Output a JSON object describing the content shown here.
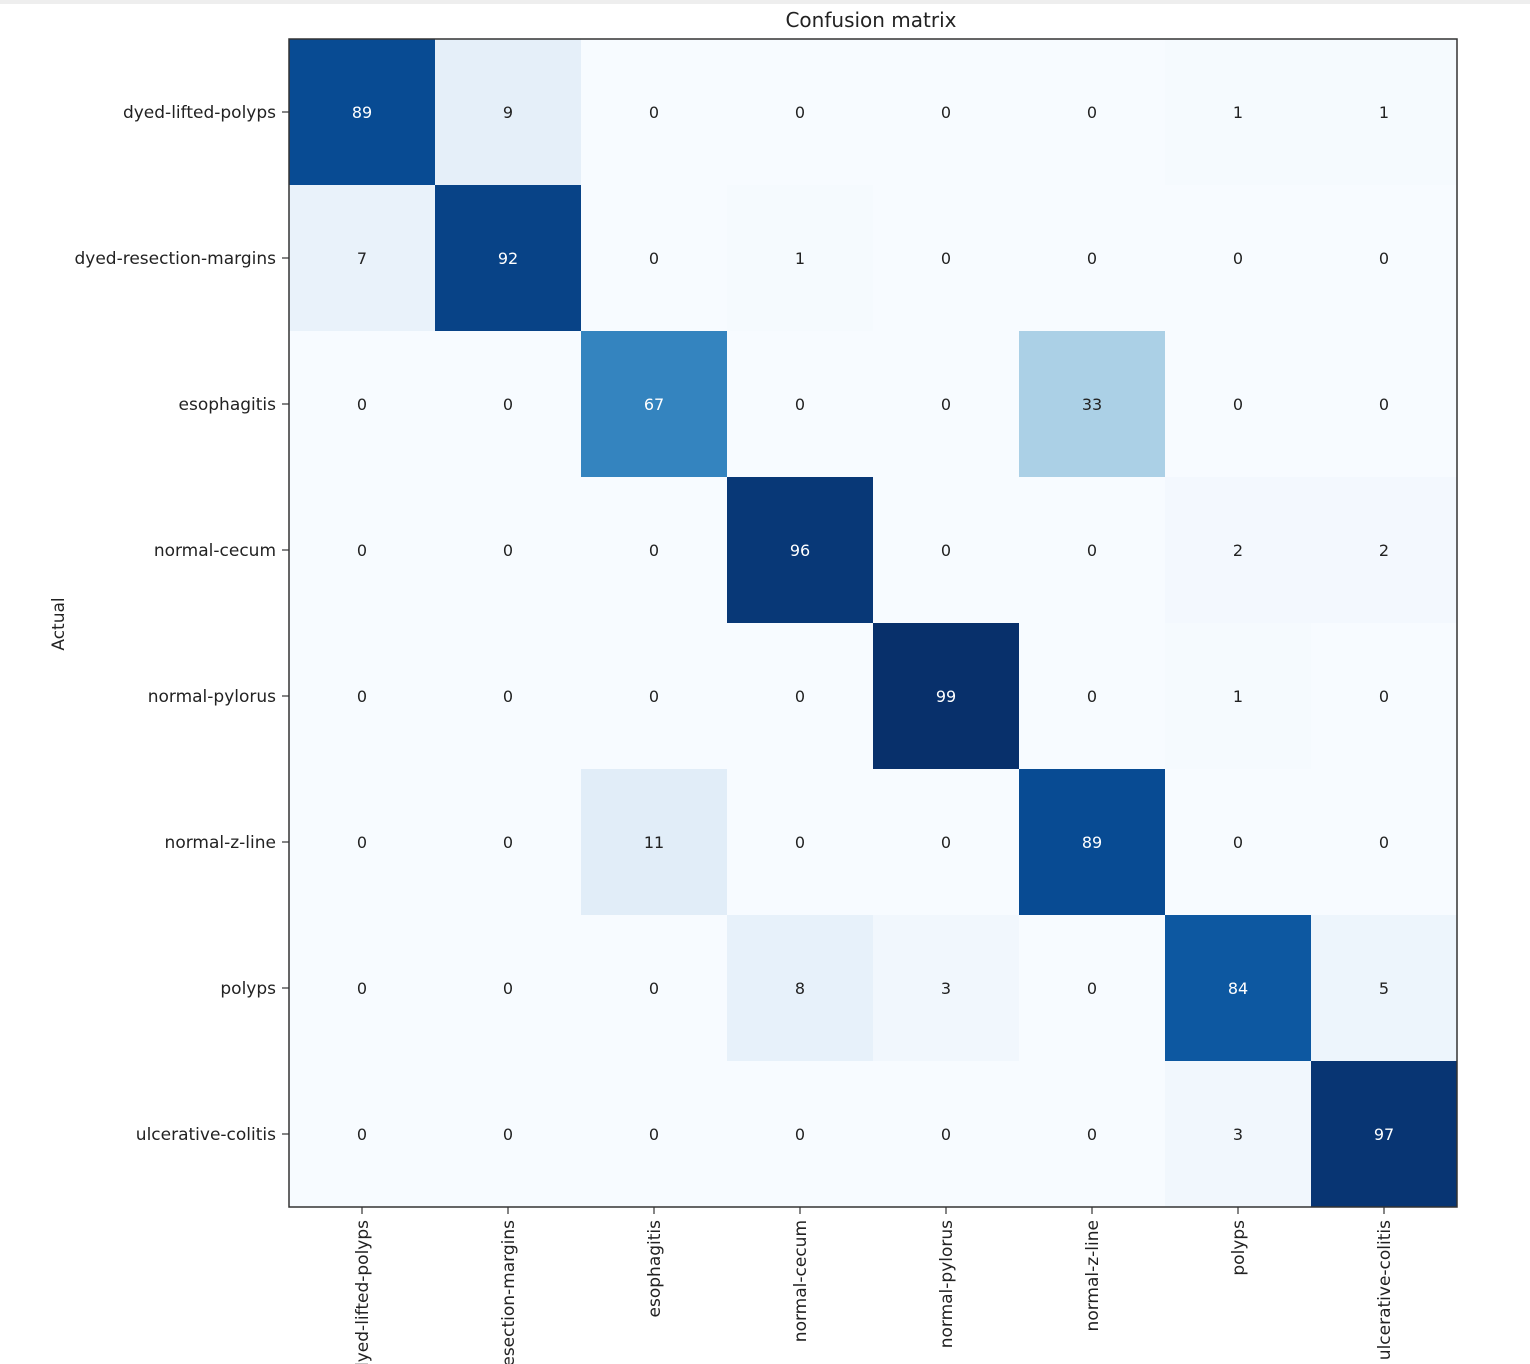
{
  "chart_data": {
    "type": "heatmap",
    "title": "Confusion matrix",
    "xlabel": "",
    "ylabel": "Actual",
    "colormap": "Blues",
    "value_range": [
      0,
      99
    ],
    "grid": false,
    "rows": [
      "dyed-lifted-polyps",
      "dyed-resection-margins",
      "esophagitis",
      "normal-cecum",
      "normal-pylorus",
      "normal-z-line",
      "polyps",
      "ulcerative-colitis"
    ],
    "columns": [
      "dyed-lifted-polyps",
      "dyed-resection-margins",
      "esophagitis",
      "normal-cecum",
      "normal-pylorus",
      "normal-z-line",
      "polyps",
      "ulcerative-colitis"
    ],
    "x_tick_labels_visible": [
      "dyed-lifted-polyps",
      "esection-margins",
      "esophagitis",
      "normal-cecum",
      "normal-pylorus",
      "normal-z-line",
      "polyps",
      "ulcerative-colitis"
    ],
    "matrix": [
      [
        89,
        9,
        0,
        0,
        0,
        0,
        1,
        1
      ],
      [
        7,
        92,
        0,
        1,
        0,
        0,
        0,
        0
      ],
      [
        0,
        0,
        67,
        0,
        0,
        33,
        0,
        0
      ],
      [
        0,
        0,
        0,
        96,
        0,
        0,
        2,
        2
      ],
      [
        0,
        0,
        0,
        0,
        99,
        0,
        1,
        0
      ],
      [
        0,
        0,
        11,
        0,
        0,
        89,
        0,
        0
      ],
      [
        0,
        0,
        0,
        8,
        3,
        0,
        84,
        5
      ],
      [
        0,
        0,
        0,
        0,
        0,
        0,
        3,
        97
      ]
    ]
  }
}
